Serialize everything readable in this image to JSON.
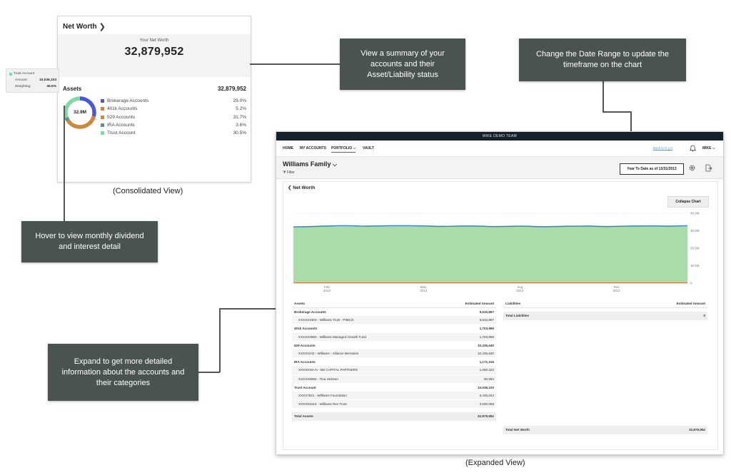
{
  "consolidated": {
    "header": "Net Worth",
    "net_worth_label": "Your Net Worth",
    "net_worth_value": "32,879,952",
    "assets_label": "Assets",
    "assets_total": "32,879,952",
    "donut_center": "32.9M",
    "legend": [
      {
        "name": "Brokerage Accounts",
        "pct": "29.0%",
        "value": 29.0,
        "color": "#4a57d6"
      },
      {
        "name": "401k Accounts",
        "pct": "5.2%",
        "value": 5.2,
        "color": "#e07b3c"
      },
      {
        "name": "529 Accounts",
        "pct": "31.7%",
        "value": 31.7,
        "color": "#c98a3c"
      },
      {
        "name": "IRA Accounts",
        "pct": "3.6%",
        "value": 3.6,
        "color": "#4f9a8a"
      },
      {
        "name": "Trust Account",
        "pct": "30.5%",
        "value": 30.5,
        "color": "#7fd9a0"
      }
    ],
    "tooltip": {
      "name": "Trust Account",
      "amount_label": "Amount:",
      "amount_value": "10,036,103",
      "weighting_label": "Weighting:",
      "weighting_value": "30.5%"
    },
    "caption": "(Consolidated View)"
  },
  "callouts": {
    "summary": "View a summary of your accounts and their Asset/Liability status",
    "date_range": "Change the Date Range to update the timeframe on the chart",
    "hover": "Hover to view monthly dividend and interest detail",
    "expand": "Expand to get more detailed information about the accounts and their categories"
  },
  "expanded": {
    "team_title": "MIKE DEMO TEAM",
    "nav": [
      "HOME",
      "MY ACCOUNTS",
      "PORTFOLIO",
      "VAULT"
    ],
    "back_link": "Back to N 1.0",
    "user": "MIKE",
    "family": "Williams Family",
    "filter": "Filter",
    "date_range": "Year To Date as of 12/31/2013",
    "section_title": "Net Worth",
    "collapse_button": "Collapse Chart",
    "caption": "(Expanded View)",
    "assets_table": {
      "col1": "Assets",
      "col2": "Estimated Amount",
      "groups": [
        {
          "name": "Brokerage Accounts",
          "value": "9,532,897",
          "accounts": [
            {
              "name": "XXXXX2303 - Williams Trust - PIMCO",
              "value": "9,532,897"
            }
          ]
        },
        {
          "name": "401k Accounts",
          "value": "1,703,995",
          "accounts": [
            {
              "name": "XXXXX2960 - Williams Managed Growth Fund",
              "value": "1,703,995"
            }
          ]
        },
        {
          "name": "529 Accounts",
          "value": "10,435,640",
          "accounts": [
            {
              "name": "XXXX4442 - Williams - Alliance Bernstein",
              "value": "10,435,640"
            }
          ]
        },
        {
          "name": "IRA Accounts",
          "value": "1,171,316",
          "accounts": [
            {
              "name": "XXXXXX6-AI - BD CAPITAL PARTNERS",
              "value": "1,080,322"
            },
            {
              "name": "XXXXX6062 - Tina Hickson",
              "value": "90,994"
            }
          ]
        },
        {
          "name": "Trust Account",
          "value": "10,036,103",
          "accounts": [
            {
              "name": "XXXX7621 - Williams Foundation",
              "value": "6,436,044"
            },
            {
              "name": "XXXXX5416 - Williams Rev Trust",
              "value": "3,600,059"
            }
          ]
        }
      ],
      "total_label": "Total Assets",
      "total_value": "32,879,952"
    },
    "liabilities_table": {
      "col1": "Liabilities",
      "col2": "Estimated Amount",
      "total_label": "Total Liabilities",
      "total_value": "0"
    },
    "net_worth_total_label": "Total Net Worth",
    "net_worth_total_value": "32,879,952"
  },
  "chart_data": {
    "type": "area",
    "x_ticks": [
      {
        "month": "Feb",
        "year": "2013",
        "pos": 0.085
      },
      {
        "month": "May",
        "year": "2013",
        "pos": 0.33
      },
      {
        "month": "Aug",
        "year": "2013",
        "pos": 0.575
      },
      {
        "month": "Nov",
        "year": "2013",
        "pos": 0.82
      }
    ],
    "y_ticks": [
      "0",
      "10.0M",
      "20.0M",
      "30.0M",
      "40.0M"
    ],
    "ylim": [
      0,
      40
    ],
    "series": [
      {
        "values": [
          32.2,
          32.3,
          32.4,
          32.6,
          32.7,
          32.9,
          32.9,
          32.8,
          32.6,
          32.7,
          32.8,
          32.9,
          32.9,
          32.9,
          32.8,
          32.7,
          32.5,
          32.5,
          32.6,
          32.7,
          32.7,
          32.6,
          32.4,
          32.4,
          32.5,
          32.6,
          32.6,
          32.4,
          32.3,
          32.4,
          32.5,
          32.6,
          32.6,
          32.7,
          32.5,
          32.4,
          32.5,
          32.6,
          32.7,
          32.7,
          32.8,
          32.7,
          32.6,
          32.8,
          32.9
        ],
        "color": "#3d7fd1",
        "fill": "#a8dca8"
      },
      {
        "values": [
          0.2,
          0.2,
          0.2,
          0.2,
          0.2,
          0.2,
          0.2,
          0.2,
          0.2,
          0.2,
          0.2,
          0.2,
          0.2,
          0.2,
          0.2,
          0.2,
          0.2,
          0.2,
          0.2,
          0.2,
          0.2,
          0.2,
          0.2,
          0.2,
          0.2,
          0.2,
          0.2,
          0.2,
          0.2,
          0.2,
          0.2,
          0.2,
          0.2,
          0.2,
          0.2,
          0.2,
          0.2,
          0.2,
          0.2,
          0.2,
          0.2,
          0.2,
          0.2,
          0.2,
          0.2
        ],
        "color": "#e0703c"
      }
    ],
    "grid": true
  }
}
